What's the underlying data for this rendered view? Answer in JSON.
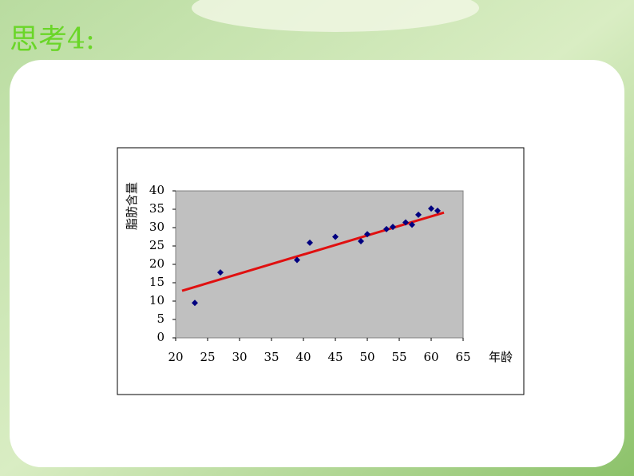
{
  "slide": {
    "title": "思考4:"
  },
  "chart_data": {
    "type": "scatter",
    "x_label": "年龄",
    "y_label": "脂肪含量",
    "x": [
      23,
      27,
      39,
      41,
      45,
      49,
      50,
      53,
      54,
      56,
      57,
      58,
      60,
      61
    ],
    "series": [
      {
        "name": null,
        "color": "#000080",
        "values": [
          9.5,
          17.8,
          21.2,
          25.9,
          27.5,
          26.3,
          28.2,
          29.6,
          30.2,
          31.4,
          30.8,
          33.5,
          35.2,
          34.6
        ]
      }
    ],
    "trendline": {
      "x": [
        21,
        62
      ],
      "values": [
        12.8,
        34.1
      ],
      "color": "#e01010"
    },
    "xlim": [
      20,
      65
    ],
    "xticks": [
      20,
      25,
      30,
      35,
      40,
      45,
      50,
      55,
      60,
      65
    ],
    "ylim": [
      0,
      40
    ],
    "yticks": [
      0,
      5,
      10,
      15,
      20,
      25,
      30,
      35,
      40
    ],
    "plot_background": "#c0c0c0"
  }
}
